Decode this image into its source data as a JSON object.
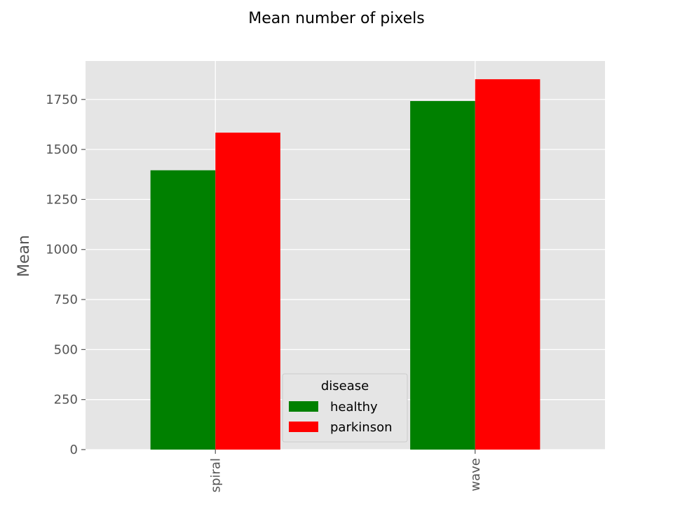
{
  "chart_data": {
    "type": "bar",
    "title": "Mean number of pixels",
    "xlabel": "",
    "ylabel": "Mean",
    "categories": [
      "spiral",
      "wave"
    ],
    "series": [
      {
        "name": "healthy",
        "color": "#008000",
        "values": [
          1396,
          1742
        ]
      },
      {
        "name": "parkinson",
        "color": "#ff0000",
        "values": [
          1584,
          1851
        ]
      }
    ],
    "ylim": [
      0,
      1942
    ],
    "yticks": [
      0,
      250,
      500,
      750,
      1000,
      1250,
      1500,
      1750
    ],
    "grid": true,
    "legend": {
      "title": "disease",
      "placement": "bottom-center"
    },
    "colors": {
      "plot_background": "#e5e5e5",
      "grid": "#ffffff"
    }
  }
}
